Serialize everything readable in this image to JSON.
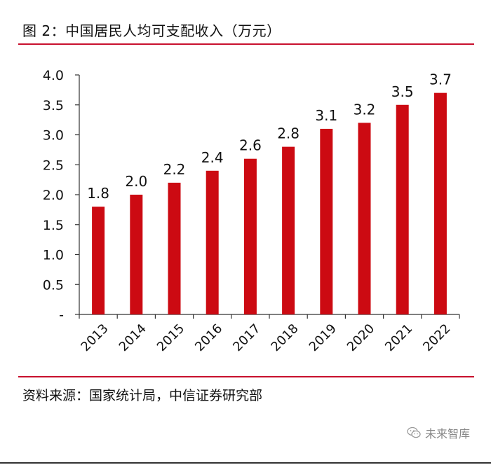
{
  "title": "图 2：中国居民人均可支配收入（万元）",
  "source": "资料来源：国家统计局，中信证券研究部",
  "watermark": {
    "icon": "wechat-icon",
    "text": "未来智库"
  },
  "colors": {
    "bar": "#cc0a12",
    "rule": "#c8102e"
  },
  "chart_data": {
    "type": "bar",
    "categories": [
      "2013",
      "2014",
      "2015",
      "2016",
      "2017",
      "2018",
      "2019",
      "2020",
      "2021",
      "2022"
    ],
    "values": [
      1.8,
      2.0,
      2.2,
      2.4,
      2.6,
      2.8,
      3.1,
      3.2,
      3.5,
      3.7
    ],
    "value_labels": [
      "1.8",
      "2.0",
      "2.2",
      "2.4",
      "2.6",
      "2.8",
      "3.1",
      "3.2",
      "3.5",
      "3.7"
    ],
    "yticks": [
      0,
      0.5,
      1.0,
      1.5,
      2.0,
      2.5,
      3.0,
      3.5,
      4.0
    ],
    "ytick_labels": [
      "-",
      "0.5",
      "1.0",
      "1.5",
      "2.0",
      "2.5",
      "3.0",
      "3.5",
      "4.0"
    ],
    "ylim": [
      0,
      4.0
    ],
    "grid": false,
    "legend": "none"
  }
}
